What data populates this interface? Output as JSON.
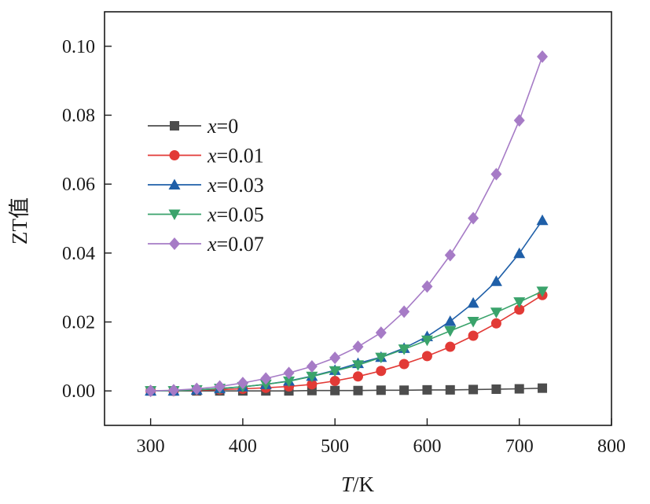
{
  "chart_data": {
    "type": "line",
    "xlabel": {
      "italic": "T",
      "rest": "/K"
    },
    "ylabel": "ZT值",
    "xlim": [
      250,
      800
    ],
    "ylim": [
      -0.01,
      0.11
    ],
    "xticks": [
      300,
      400,
      500,
      600,
      700,
      800
    ],
    "yticks": [
      0.0,
      0.02,
      0.04,
      0.06,
      0.08,
      0.1
    ],
    "xtick_labels": [
      "300",
      "400",
      "500",
      "600",
      "700",
      "800"
    ],
    "ytick_labels": [
      "0.00",
      "0.02",
      "0.04",
      "0.06",
      "0.08",
      "0.10"
    ],
    "legend_position": "upper-left",
    "grid": false,
    "x": [
      300,
      325,
      350,
      375,
      400,
      425,
      450,
      475,
      500,
      525,
      550,
      575,
      600,
      625,
      650,
      675,
      700,
      725
    ],
    "series": [
      {
        "label_var": "x",
        "label_rest": "=0",
        "color": "#4d4d4d",
        "marker": "square",
        "values": [
          0.0,
          0.0,
          0.0,
          0.0,
          0.0,
          0.0,
          0.0,
          0.0001,
          0.0001,
          0.0001,
          0.0002,
          0.0002,
          0.0003,
          0.0003,
          0.0004,
          0.0005,
          0.0006,
          0.0008
        ]
      },
      {
        "label_var": "x",
        "label_rest": "=0.01",
        "color": "#e23a36",
        "marker": "circle",
        "values": [
          0.0,
          0.0,
          0.0002,
          0.0004,
          0.0006,
          0.0009,
          0.0013,
          0.0019,
          0.0029,
          0.0042,
          0.0058,
          0.0078,
          0.0101,
          0.0128,
          0.016,
          0.0196,
          0.0236,
          0.0278
        ]
      },
      {
        "label_var": "x",
        "label_rest": "=0.03",
        "color": "#1f5fa8",
        "marker": "triangle-up",
        "values": [
          0.0,
          0.0,
          0.0003,
          0.0007,
          0.0012,
          0.0019,
          0.0029,
          0.0043,
          0.006,
          0.008,
          0.0098,
          0.0124,
          0.0158,
          0.0202,
          0.0255,
          0.0318,
          0.0399,
          0.0495
        ]
      },
      {
        "label_var": "x",
        "label_rest": "=0.05",
        "color": "#3aa36b",
        "marker": "triangle-down",
        "values": [
          0.0,
          0.0,
          0.0003,
          0.0007,
          0.0012,
          0.0019,
          0.0028,
          0.0042,
          0.0058,
          0.0075,
          0.0097,
          0.0121,
          0.0147,
          0.0174,
          0.0201,
          0.0228,
          0.0258,
          0.0289
        ]
      },
      {
        "label_var": "x",
        "label_rest": "=0.07",
        "color": "#a67bc6",
        "marker": "diamond",
        "values": [
          0.0,
          0.0002,
          0.0006,
          0.0013,
          0.0023,
          0.0036,
          0.0052,
          0.0071,
          0.0096,
          0.0128,
          0.0169,
          0.023,
          0.0303,
          0.0394,
          0.0501,
          0.0629,
          0.0785,
          0.097
        ]
      }
    ]
  }
}
